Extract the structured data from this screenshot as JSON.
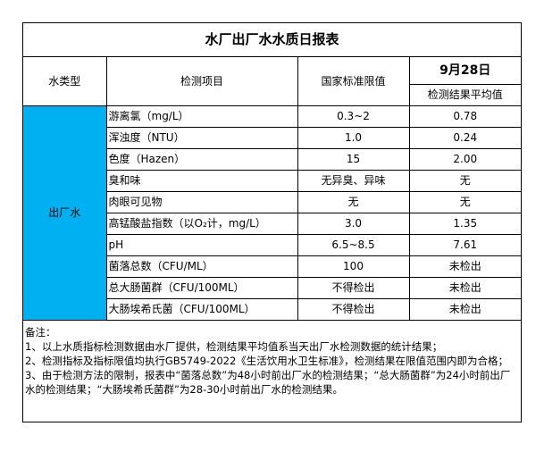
{
  "title": "水厂出厂水水质日报表",
  "headers": {
    "type": "水类型",
    "item": "检测项目",
    "limit": "国家标准限值",
    "date": "9月28日",
    "result": "检测结果平均值"
  },
  "water_type": "出厂水",
  "rows": [
    {
      "item": "游离氯（mg/L）",
      "limit": "0.3~2",
      "result": "0.78"
    },
    {
      "item": "浑浊度（NTU）",
      "limit": "1.0",
      "result": "0.24"
    },
    {
      "item": "色度（Hazen）",
      "limit": "15",
      "result": "2.00"
    },
    {
      "item": "臭和味",
      "limit": "无异臭、异味",
      "result": "无"
    },
    {
      "item": "肉眼可见物",
      "limit": "无",
      "result": "无"
    },
    {
      "item": "高锰酸盐指数（以O₂计，mg/L）",
      "limit": "3.0",
      "result": "1.35"
    },
    {
      "item": "pH",
      "limit": "6.5~8.5",
      "result": "7.61"
    },
    {
      "item": "菌落总数（CFU/ML）",
      "limit": "100",
      "result": "未检出"
    },
    {
      "item": "总大肠菌群（CFU/100ML）",
      "limit": "不得检出",
      "result": "未检出"
    },
    {
      "item": "大肠埃希氏菌（CFU/100ML）",
      "limit": "不得检出",
      "result": "未检出"
    }
  ],
  "notes": {
    "heading": "备注：",
    "lines": [
      "1、以上水质指标检测数据由水厂提供，检测结果平均值系当天出厂水检测数据的统计结果；",
      "2、检测指标及指标限值均执行GB5749-2022《生活饮用水卫生标准》，检测结果在限值范围内即为合格；",
      "3、由于检测方法的限制，报表中“菌落总数”为48小时前出厂水的检测结果；“总大肠菌群”为24小时前出厂水的检测结果；“大肠埃希氏菌群”为28-30小时前出厂水的检测结果。"
    ]
  },
  "colors": {
    "highlight": "#00b0f0"
  }
}
